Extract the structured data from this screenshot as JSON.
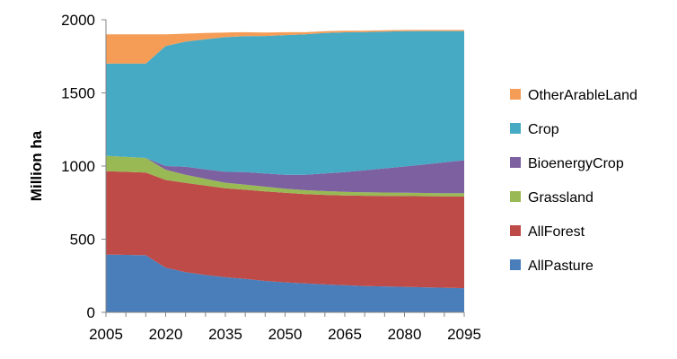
{
  "chart_data": {
    "type": "area",
    "stacked": true,
    "title": "",
    "xlabel": "",
    "ylabel": "Million ha",
    "xlim": [
      2005,
      2095
    ],
    "ylim": [
      0,
      2000
    ],
    "x_ticks": [
      2005,
      2020,
      2035,
      2050,
      2065,
      2080,
      2095
    ],
    "y_ticks": [
      0,
      500,
      1000,
      1500,
      2000
    ],
    "grid": false,
    "legend_position": "right",
    "x": [
      2005,
      2015,
      2020,
      2025,
      2030,
      2035,
      2040,
      2045,
      2050,
      2055,
      2060,
      2065,
      2070,
      2075,
      2080,
      2085,
      2090,
      2095
    ],
    "series": [
      {
        "name": "AllPasture",
        "color": "#4a7ebb",
        "values": [
          395,
          390,
          305,
          275,
          255,
          240,
          228,
          215,
          205,
          198,
          191,
          185,
          180,
          177,
          174,
          171,
          168,
          165
        ]
      },
      {
        "name": "AllForest",
        "color": "#be4b48",
        "values": [
          570,
          565,
          600,
          610,
          612,
          608,
          610,
          612,
          612,
          610,
          612,
          614,
          617,
          619,
          621,
          623,
          625,
          627
        ]
      },
      {
        "name": "Grassland",
        "color": "#98b954",
        "values": [
          105,
          100,
          70,
          55,
          45,
          38,
          35,
          32,
          28,
          27,
          26,
          25,
          24,
          23,
          22,
          22,
          22,
          22
        ]
      },
      {
        "name": "BioenergyCrop",
        "color": "#7d60a0",
        "values": [
          0,
          0,
          25,
          55,
          65,
          75,
          85,
          90,
          95,
          105,
          120,
          135,
          150,
          165,
          180,
          195,
          210,
          225
        ]
      },
      {
        "name": "Crop",
        "color": "#46aac5",
        "values": [
          630,
          645,
          820,
          855,
          890,
          920,
          930,
          940,
          955,
          960,
          960,
          955,
          945,
          935,
          925,
          912,
          898,
          884
        ]
      },
      {
        "name": "OtherArableLand",
        "color": "#f59d56",
        "values": [
          200,
          200,
          80,
          55,
          43,
          32,
          27,
          23,
          20,
          15,
          13,
          11,
          10,
          9,
          8,
          7,
          7,
          7
        ]
      }
    ]
  }
}
